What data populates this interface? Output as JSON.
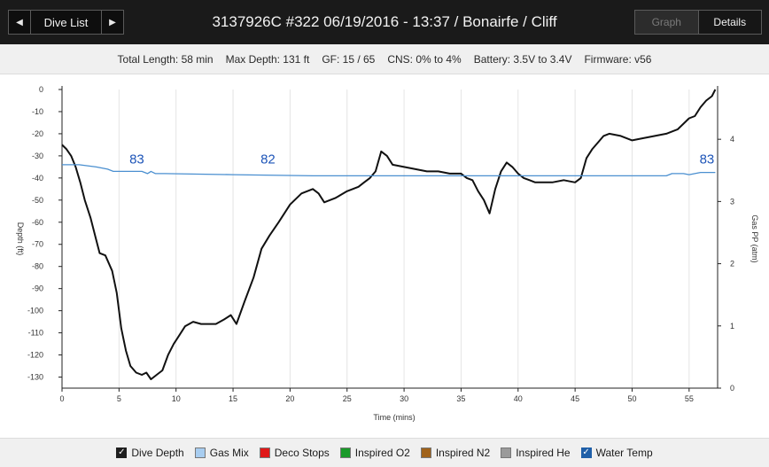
{
  "header": {
    "nav_label": "Dive List",
    "title": "3137926C #322 06/19/2016 - 13:37  / Bonairfe  / Cliff",
    "graph_label": "Graph",
    "details_label": "Details"
  },
  "info": [
    "Total Length: 58 min",
    "Max Depth: 131 ft",
    "GF: 15 / 65",
    "CNS: 0% to 4%",
    "Battery: 3.5V to 3.4V",
    "Firmware: v56"
  ],
  "legend": [
    {
      "label": "Dive Depth",
      "color": "#1e1e1e",
      "checked": true
    },
    {
      "label": "Gas Mix",
      "color": "#a8cdf0",
      "checked": false
    },
    {
      "label": "Deco Stops",
      "color": "#e01818",
      "checked": false
    },
    {
      "label": "Inspired O2",
      "color": "#1a9a2a",
      "checked": false
    },
    {
      "label": "Inspired N2",
      "color": "#a0621a",
      "checked": false
    },
    {
      "label": "Inspired He",
      "color": "#9a9a9a",
      "checked": false
    },
    {
      "label": "Water Temp",
      "color": "#1f5fa8",
      "checked": true
    }
  ],
  "chart_data": {
    "type": "line",
    "title": "",
    "xlabel": "Time (mins)",
    "ylabel": "Depth (ft)",
    "y2label": "Gas PP (atm)",
    "xlim": [
      0,
      57.5
    ],
    "ylim": [
      0,
      -135
    ],
    "y2lim": [
      0,
      4.8
    ],
    "xticks": [
      0,
      5,
      10,
      15,
      20,
      25,
      30,
      35,
      40,
      45,
      50,
      55
    ],
    "yticks": [
      0,
      -10,
      -20,
      -30,
      -40,
      -50,
      -60,
      -70,
      -80,
      -90,
      -100,
      -110,
      -120,
      -130
    ],
    "y2ticks": [
      0,
      1,
      2,
      3,
      4
    ],
    "grid": "vertical",
    "series": [
      {
        "name": "Dive Depth",
        "color": "#111111",
        "x": [
          0,
          0.4,
          0.8,
          1.2,
          1.6,
          2.0,
          2.5,
          3.0,
          3.3,
          3.8,
          4.4,
          4.8,
          5.2,
          5.6,
          6.0,
          6.5,
          7.0,
          7.4,
          7.8,
          8.3,
          8.8,
          9.3,
          9.8,
          10.3,
          10.8,
          11.5,
          12.2,
          12.8,
          13.5,
          14.2,
          14.8,
          15.3,
          16.0,
          16.8,
          17.5,
          18.2,
          19.0,
          20.0,
          21.0,
          22.0,
          22.5,
          23.0,
          24.0,
          25.0,
          26.0,
          26.5,
          27.0,
          27.5,
          28.0,
          28.5,
          29.0,
          30.0,
          31.0,
          32.0,
          33.0,
          34.0,
          35.0,
          35.5,
          36.0,
          36.5,
          37.0,
          37.5,
          38.0,
          38.5,
          39.0,
          39.5,
          40.0,
          40.5,
          41.0,
          41.5,
          42.0,
          43.0,
          44.0,
          45.0,
          45.5,
          46.0,
          46.5,
          47.0,
          47.5,
          48.0,
          49.0,
          50.0,
          51.0,
          52.0,
          53.0,
          54.0,
          55.0,
          55.5,
          56.0,
          56.5,
          57.0,
          57.3
        ],
        "y": [
          -25,
          -27,
          -30,
          -35,
          -42,
          -50,
          -58,
          -68,
          -74,
          -75,
          -82,
          -92,
          -108,
          -118,
          -125,
          -128,
          -129,
          -128,
          -131,
          -129,
          -127,
          -120,
          -115,
          -111,
          -107,
          -105,
          -106,
          -106,
          -106,
          -104,
          -102,
          -106,
          -96,
          -85,
          -72,
          -66,
          -60,
          -52,
          -47,
          -45,
          -47,
          -51,
          -49,
          -46,
          -44,
          -42,
          -40,
          -37,
          -28,
          -30,
          -34,
          -35,
          -36,
          -37,
          -37,
          -38,
          -38,
          -40,
          -41,
          -46,
          -50,
          -56,
          -45,
          -37,
          -33,
          -35,
          -38,
          -40,
          -41,
          -42,
          -42,
          -42,
          -41,
          -42,
          -40,
          -31,
          -27,
          -24,
          -21,
          -20,
          -21,
          -23,
          -22,
          -21,
          -20,
          -18,
          -13,
          -12,
          -8,
          -5,
          -3,
          0
        ]
      },
      {
        "name": "Water Temp",
        "color": "#4a8fd0",
        "x": [
          0,
          1.5,
          3.0,
          4.0,
          4.5,
          7.0,
          7.5,
          7.8,
          8.2,
          9.0,
          15.0,
          22.0,
          25.0,
          30.0,
          35.0,
          40.0,
          45.0,
          50.0,
          53.0,
          53.5,
          54.0,
          54.5,
          55.0,
          56.0,
          57.3
        ],
        "y": [
          -34,
          -34,
          -35,
          -36,
          -37,
          -37,
          -38,
          -37,
          -38,
          -38,
          -38.5,
          -39,
          -39,
          -39,
          -39,
          -39,
          -39,
          -39,
          -39,
          -38,
          -38,
          -38,
          -38.5,
          -37.5,
          -37.5
        ]
      }
    ],
    "annotations": [
      {
        "text": "83",
        "x": 7,
        "y": -31
      },
      {
        "text": "82",
        "x": 18.5,
        "y": -31
      },
      {
        "text": "83",
        "x": 57,
        "y": -31
      }
    ]
  }
}
